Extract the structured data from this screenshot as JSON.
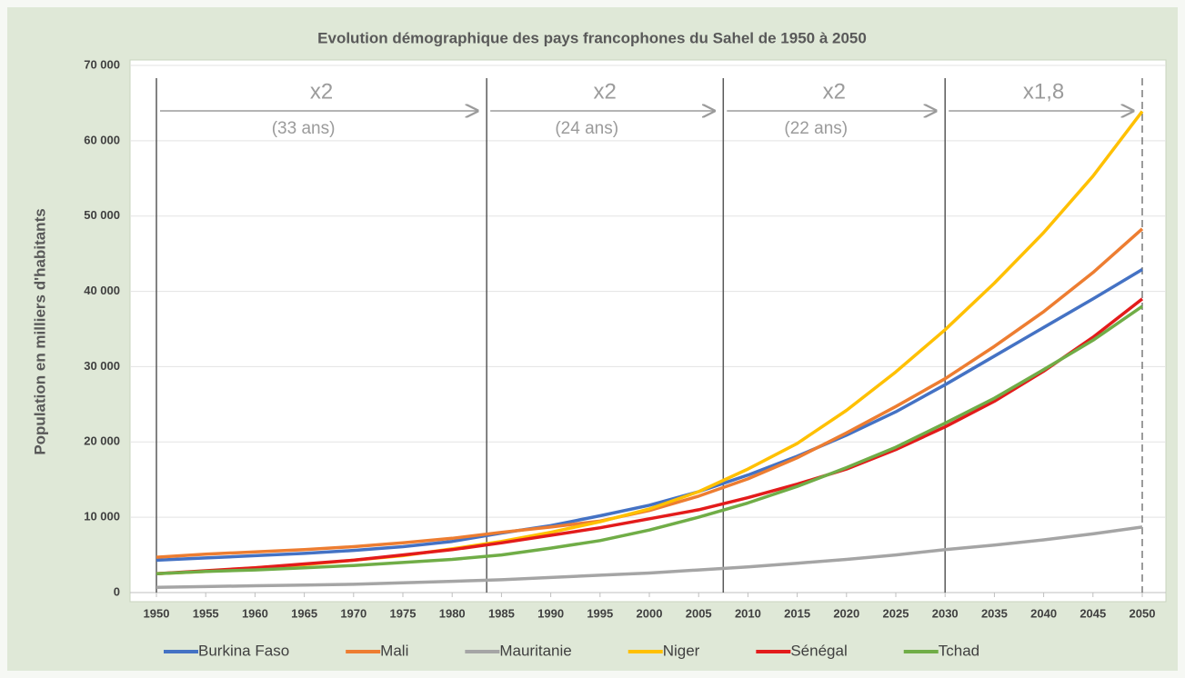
{
  "chart_data": {
    "type": "line",
    "title": "Evolution démographique des pays francophones du Sahel de 1950 à 2050",
    "y_label": "Population en milliers d'habitants",
    "x": [
      1950,
      1955,
      1960,
      1965,
      1970,
      1975,
      1980,
      1985,
      1990,
      1995,
      2000,
      2005,
      2010,
      2015,
      2020,
      2025,
      2030,
      2035,
      2040,
      2045,
      2050
    ],
    "xlim": [
      1950,
      2050
    ],
    "xticks": [
      1950,
      1955,
      1960,
      1965,
      1970,
      1975,
      1980,
      1985,
      1990,
      1995,
      2000,
      2005,
      2010,
      2015,
      2020,
      2025,
      2030,
      2035,
      2040,
      2045,
      2050
    ],
    "ylim": [
      0,
      70000
    ],
    "yticks": [
      0,
      {
        "value": 10000,
        "label": "10 000"
      },
      {
        "value": 20000,
        "label": "20 000"
      },
      {
        "value": 30000,
        "label": "30 000"
      },
      {
        "value": 40000,
        "label": "40 000"
      },
      {
        "value": 50000,
        "label": "50 000"
      },
      {
        "value": 60000,
        "label": "60 000"
      },
      {
        "value": 70000,
        "label": "70 000"
      }
    ],
    "grid": true,
    "legend": "bottom",
    "vlines": [
      1950,
      1983.5,
      2007.5,
      2030,
      2050
    ],
    "periods": [
      {
        "label": "x2",
        "note": "(33 ans)"
      },
      {
        "label": "x2",
        "note": "(24 ans)"
      },
      {
        "label": "x2",
        "note": "(22 ans)"
      },
      {
        "label": "x1,8"
      }
    ],
    "series": [
      {
        "name": "Burkina Faso",
        "color": "#4472c4",
        "values": [
          4300,
          4600,
          4900,
          5200,
          5600,
          6100,
          6800,
          7900,
          8900,
          10200,
          11600,
          13400,
          15600,
          18100,
          20900,
          24000,
          27600,
          31400,
          35200,
          39000,
          42900
        ]
      },
      {
        "name": "Mali",
        "color": "#ed7d31",
        "values": [
          4700,
          5100,
          5400,
          5700,
          6100,
          6600,
          7200,
          8000,
          8700,
          9500,
          10900,
          12800,
          15100,
          17900,
          21200,
          24700,
          28400,
          32700,
          37300,
          42500,
          48300
        ]
      },
      {
        "name": "Mauritanie",
        "color": "#a5a5a5",
        "values": [
          700,
          800,
          900,
          1000,
          1100,
          1300,
          1500,
          1700,
          2000,
          2300,
          2600,
          3000,
          3400,
          3900,
          4400,
          5000,
          5700,
          6300,
          7000,
          7800,
          8700
        ]
      },
      {
        "name": "Niger",
        "color": "#ffc000",
        "values": [
          2500,
          2800,
          3300,
          3700,
          4300,
          4900,
          5800,
          6800,
          8000,
          9400,
          11100,
          13400,
          16400,
          19800,
          24200,
          29300,
          34900,
          41100,
          47800,
          55300,
          63900
        ]
      },
      {
        "name": "Sénégal",
        "color": "#e31b1b",
        "values": [
          2500,
          2900,
          3300,
          3800,
          4300,
          5000,
          5700,
          6600,
          7600,
          8600,
          9800,
          11000,
          12600,
          14400,
          16400,
          19000,
          22000,
          25400,
          29400,
          33900,
          39000
        ]
      },
      {
        "name": "Tchad",
        "color": "#70ad47",
        "values": [
          2500,
          2800,
          3000,
          3300,
          3600,
          4000,
          4400,
          5000,
          5900,
          6900,
          8300,
          10000,
          11900,
          14100,
          16600,
          19300,
          22500,
          25800,
          29600,
          33500,
          38000
        ]
      }
    ]
  }
}
